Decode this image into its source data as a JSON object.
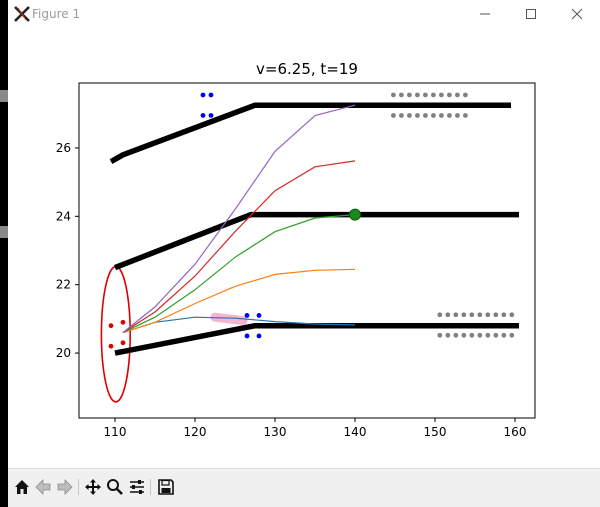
{
  "window": {
    "title": "Figure 1",
    "icons": [
      "app-logo-icon",
      "minimize-icon",
      "maximize-icon",
      "close-icon"
    ]
  },
  "toolbar": {
    "buttons": [
      {
        "name": "home-button",
        "icon": "home-icon"
      },
      {
        "name": "back-button",
        "icon": "back-arrow-icon"
      },
      {
        "name": "forward-button",
        "icon": "forward-arrow-icon"
      },
      {
        "name": "pan-button",
        "icon": "pan-move-icon"
      },
      {
        "name": "zoom-button",
        "icon": "zoom-magnifier-icon"
      },
      {
        "name": "configure-subplots-button",
        "icon": "sliders-icon"
      },
      {
        "name": "save-button",
        "icon": "save-floppy-icon"
      }
    ]
  },
  "chart_data": {
    "type": "scatter",
    "title": "v=6.25, t=19",
    "xlabel": "",
    "ylabel": "",
    "xlim": [
      105.5,
      162.5
    ],
    "ylim": [
      18.1,
      27.9
    ],
    "xticks": [
      110,
      120,
      130,
      140,
      150,
      160
    ],
    "yticks": [
      20,
      22,
      24,
      26
    ],
    "grid": false,
    "legend": "none",
    "road_boundaries": [
      {
        "x": [
          109.5,
          111,
          127.5,
          159.5
        ],
        "y": [
          25.6,
          25.8,
          27.25,
          27.25
        ]
      },
      {
        "x": [
          110,
          127,
          160.5
        ],
        "y": [
          22.5,
          24.05,
          24.05
        ]
      },
      {
        "x": [
          110,
          127.5,
          160.5
        ],
        "y": [
          20.0,
          20.8,
          20.8
        ]
      }
    ],
    "trajectories": [
      {
        "color": "#1f77b4",
        "x": [
          111,
          115,
          120,
          125,
          130,
          135,
          140
        ],
        "y": [
          20.6,
          20.9,
          21.05,
          21.02,
          20.92,
          20.85,
          20.82
        ]
      },
      {
        "color": "#ff7f0e",
        "x": [
          111,
          115,
          120,
          125,
          130,
          135,
          140
        ],
        "y": [
          20.6,
          20.9,
          21.45,
          21.95,
          22.3,
          22.42,
          22.45
        ]
      },
      {
        "color": "#2ca02c",
        "x": [
          111,
          115,
          120,
          125,
          130,
          135,
          140
        ],
        "y": [
          20.6,
          21.05,
          21.85,
          22.8,
          23.55,
          23.95,
          24.05
        ]
      },
      {
        "color": "#d62728",
        "x": [
          111,
          115,
          120,
          125,
          130,
          135,
          140
        ],
        "y": [
          20.6,
          21.2,
          22.25,
          23.55,
          24.75,
          25.45,
          25.62
        ]
      },
      {
        "color": "#9467bd",
        "x": [
          111,
          115,
          120,
          125,
          130,
          135,
          140
        ],
        "y": [
          20.6,
          21.35,
          22.6,
          24.2,
          25.9,
          26.95,
          27.25
        ]
      }
    ],
    "blue_points": {
      "color": "#0000ff",
      "x": [
        121,
        122,
        121,
        122,
        126.5,
        128,
        126.5,
        128
      ],
      "y": [
        27.55,
        27.55,
        26.95,
        26.95,
        21.1,
        21.1,
        20.5,
        20.5
      ]
    },
    "red_points": {
      "color": "#e00000",
      "x": [
        109.5,
        111,
        109.5,
        111
      ],
      "y": [
        20.8,
        20.9,
        20.2,
        20.3
      ]
    },
    "gray_points": {
      "color": "#808080",
      "x": [
        144.8,
        145.8,
        146.8,
        147.8,
        148.8,
        149.8,
        150.8,
        151.8,
        152.8,
        153.8,
        144.8,
        145.8,
        146.8,
        147.8,
        148.8,
        149.8,
        150.8,
        151.8,
        152.8,
        153.8,
        150.6,
        151.6,
        152.6,
        153.6,
        154.6,
        155.6,
        156.6,
        157.6,
        158.6,
        159.6,
        150.6,
        151.6,
        152.6,
        153.6,
        154.6,
        155.6,
        156.6,
        157.6,
        158.6,
        159.6
      ],
      "y": [
        27.55,
        27.55,
        27.55,
        27.55,
        27.55,
        27.55,
        27.55,
        27.55,
        27.55,
        27.55,
        26.95,
        26.95,
        26.95,
        26.95,
        26.95,
        26.95,
        26.95,
        26.95,
        26.95,
        26.95,
        21.12,
        21.12,
        21.12,
        21.12,
        21.12,
        21.12,
        21.12,
        21.12,
        21.12,
        21.12,
        20.52,
        20.52,
        20.52,
        20.52,
        20.52,
        20.52,
        20.52,
        20.52,
        20.52,
        20.52
      ]
    },
    "ego_ellipse": {
      "color": "#e00000",
      "cx": 110.1,
      "cy": 20.55,
      "rx": 1.8,
      "ry": 1.98
    },
    "highlight": {
      "color": "#f4b6cf",
      "x": [
        122.5,
        126
      ],
      "y": [
        21.05,
        20.95
      ]
    },
    "target_marker": {
      "color": "#1a8a1a",
      "x": 140,
      "y": 24.05
    }
  }
}
